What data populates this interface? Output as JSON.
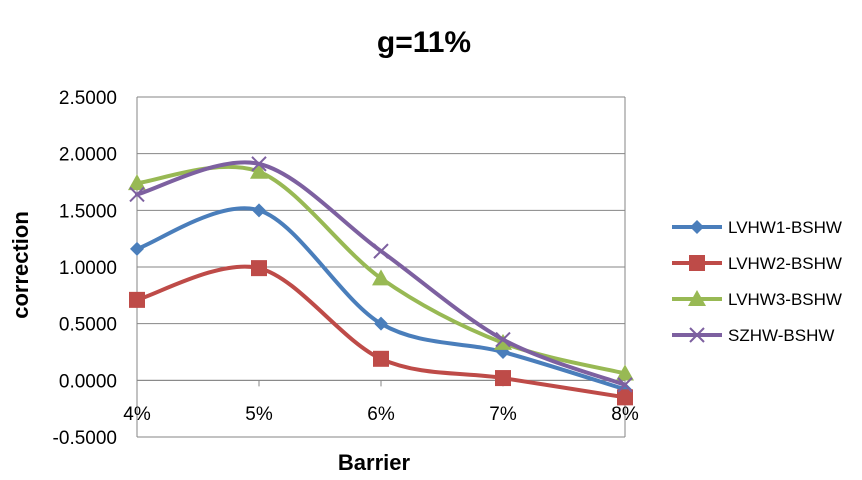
{
  "chart_data": {
    "type": "line",
    "title": "g=11%",
    "xlabel": "Barrier",
    "ylabel": "correction",
    "categories": [
      "4%",
      "5%",
      "6%",
      "7%",
      "8%"
    ],
    "y_tick_labels": [
      "-0.5000",
      "0.0000",
      "0.5000",
      "1.0000",
      "1.5000",
      "2.0000",
      "2.5000"
    ],
    "ylim": [
      -0.5,
      2.5
    ],
    "grid": "horizontal",
    "legend_position": "right",
    "smoothed": true,
    "series": [
      {
        "name": "LVHW1-BSHW",
        "values": [
          1.16,
          1.5,
          0.5,
          0.25,
          -0.08
        ],
        "color": "#4a7ebb",
        "marker": "diamond"
      },
      {
        "name": "LVHW2-BSHW",
        "values": [
          0.71,
          0.99,
          0.19,
          0.02,
          -0.15
        ],
        "color": "#be4b48",
        "marker": "square"
      },
      {
        "name": "LVHW3-BSHW",
        "values": [
          1.74,
          1.84,
          0.9,
          0.33,
          0.06
        ],
        "color": "#98b954",
        "marker": "triangle"
      },
      {
        "name": "SZHW-BSHW",
        "values": [
          1.64,
          1.91,
          1.14,
          0.36,
          -0.04
        ],
        "color": "#7d60a0",
        "marker": "x"
      }
    ]
  }
}
